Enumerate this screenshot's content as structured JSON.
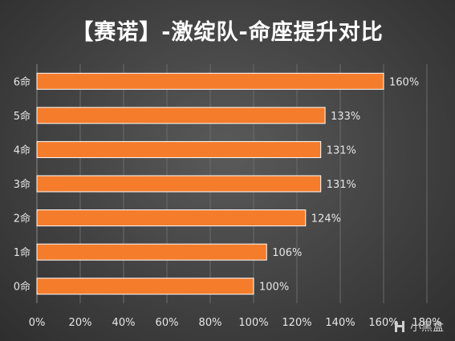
{
  "colors": {
    "bar": "#f47c2b",
    "bar_edge": "#ffffff",
    "text": "#e6e6e6",
    "grid": "#6a6a6a"
  },
  "watermark": {
    "text": "小黑盒",
    "icon": "heybox-logo-icon"
  },
  "chart_data": {
    "type": "bar",
    "orientation": "horizontal",
    "title": "【赛诺】-激绽队-命座提升对比",
    "categories": [
      "6命",
      "5命",
      "4命",
      "3命",
      "2命",
      "1命",
      "0命"
    ],
    "values": [
      160,
      133,
      131,
      131,
      124,
      106,
      100
    ],
    "data_labels": [
      "160%",
      "133%",
      "131%",
      "131%",
      "124%",
      "106%",
      "100%"
    ],
    "xlim": [
      0,
      180
    ],
    "x_ticks": [
      0,
      20,
      40,
      60,
      80,
      100,
      120,
      140,
      160,
      180
    ],
    "x_tick_labels": [
      "0%",
      "20%",
      "40%",
      "60%",
      "80%",
      "100%",
      "120%",
      "140%",
      "160%",
      "180%"
    ],
    "xlabel": "",
    "ylabel": "",
    "grid": true,
    "legend": "none"
  }
}
